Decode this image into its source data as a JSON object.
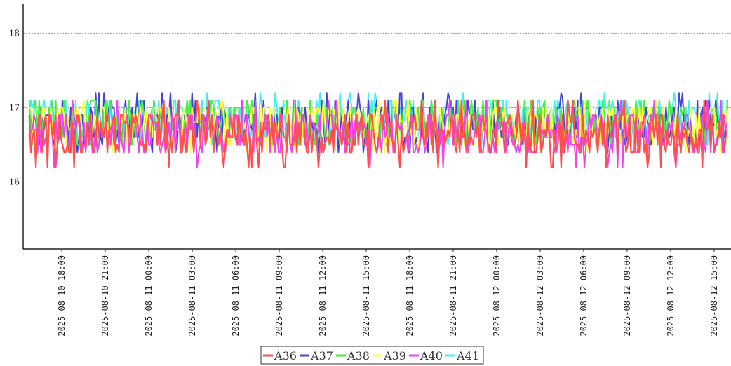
{
  "chart_data": {
    "type": "line",
    "title": "",
    "xlabel": "",
    "ylabel": "",
    "xlim": [
      "2025-08-10 15:20",
      "2025-08-12 16:10"
    ],
    "ylim": [
      15.1,
      18.4
    ],
    "yticks": [
      16,
      17,
      18
    ],
    "ytick_labels": [
      "16",
      "17",
      "18"
    ],
    "xtick_labels": [
      "2025-08-10 18:00",
      "2025-08-10 21:00",
      "2025-08-11 00:00",
      "2025-08-11 03:00",
      "2025-08-11 06:00",
      "2025-08-11 09:00",
      "2025-08-11 12:00",
      "2025-08-11 15:00",
      "2025-08-11 18:00",
      "2025-08-11 21:00",
      "2025-08-12 00:00",
      "2025-08-12 03:00",
      "2025-08-12 06:00",
      "2025-08-12 09:00",
      "2025-08-12 12:00",
      "2025-08-12 15:00"
    ],
    "grid": "horizontal dotted",
    "legend_position": "bottom-center",
    "series": [
      {
        "name": "A36",
        "color": "#ff4f4f",
        "range": [
          16.2,
          17.1
        ]
      },
      {
        "name": "A37",
        "color": "#4444dd",
        "range": [
          16.4,
          17.2
        ]
      },
      {
        "name": "A38",
        "color": "#44ee44",
        "range": [
          16.5,
          17.1
        ]
      },
      {
        "name": "A39",
        "color": "#ffff44",
        "range": [
          16.4,
          17.1
        ]
      },
      {
        "name": "A40",
        "color": "#ee44ee",
        "range": [
          16.2,
          17.1
        ]
      },
      {
        "name": "A41",
        "color": "#44eeee",
        "range": [
          16.5,
          17.2
        ]
      }
    ]
  }
}
